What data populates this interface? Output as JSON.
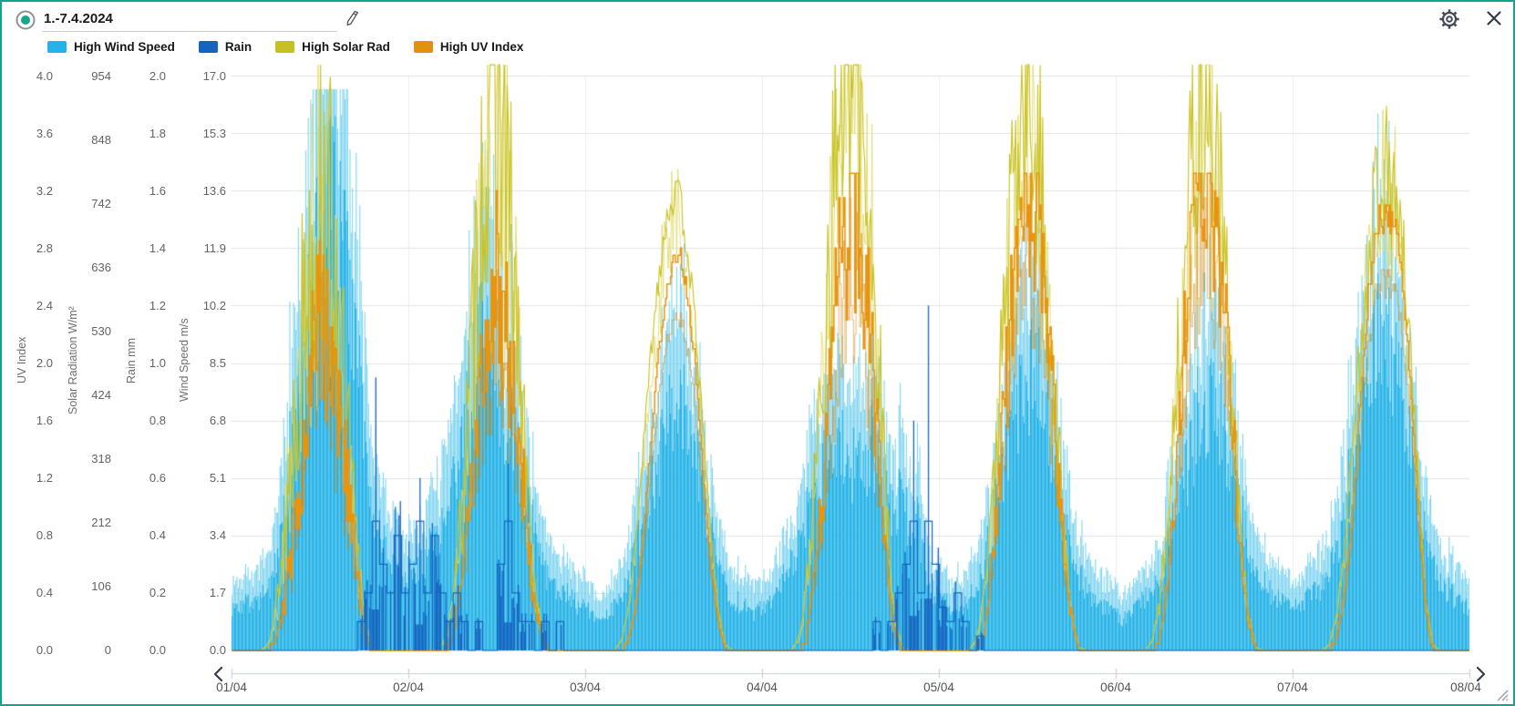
{
  "window": {
    "border_color": "#0fa78c",
    "background": "#ffffff"
  },
  "header": {
    "radio_selected": true,
    "title_value": "1.-7.4.2024",
    "edit_icon": "pencil-icon",
    "settings_icon": "gear-icon",
    "close_icon": "x-icon"
  },
  "legend": [
    {
      "label": "High Wind Speed",
      "color": "#25b2e8"
    },
    {
      "label": "Rain",
      "color": "#1565c0"
    },
    {
      "label": "High Solar Rad",
      "color": "#c6c022"
    },
    {
      "label": "High UV Index",
      "color": "#e0920f"
    }
  ],
  "axes": {
    "left": [
      {
        "title": "UV Index",
        "ticks": [
          "4.0",
          "3.6",
          "3.2",
          "2.8",
          "2.4",
          "2.0",
          "1.6",
          "1.2",
          "0.8",
          "0.4",
          "0.0"
        ]
      },
      {
        "title": "Solar Radiation W/m²",
        "ticks": [
          "954",
          "848",
          "742",
          "636",
          "530",
          "424",
          "318",
          "212",
          "106",
          "0"
        ]
      },
      {
        "title": "Rain mm",
        "ticks": [
          "2.0",
          "1.8",
          "1.6",
          "1.4",
          "1.2",
          "1.0",
          "0.8",
          "0.6",
          "0.4",
          "0.2",
          "0.0"
        ]
      },
      {
        "title": "Wind Speed m/s",
        "ticks": [
          "17.0",
          "15.3",
          "13.6",
          "11.9",
          "10.2",
          "8.5",
          "6.8",
          "5.1",
          "3.4",
          "1.7",
          "0.0"
        ]
      }
    ],
    "x": {
      "labels": [
        "01/04",
        "02/04",
        "03/04",
        "04/04",
        "05/04",
        "06/04",
        "07/04",
        "08/04"
      ]
    }
  },
  "chart_data": {
    "type": "bar",
    "note": "multi-axis weather time series, 1.-7.4.2024; wind/rain drawn as bars, solar/UV as jagged-stepped lines; hourly envelope values per day estimated from gridlines",
    "x": {
      "days": [
        "01/04",
        "02/04",
        "03/04",
        "04/04",
        "05/04",
        "06/04",
        "07/04"
      ],
      "hours_per_day": 24
    },
    "y_axes": [
      {
        "id": "uv",
        "title": "UV Index",
        "min": 0,
        "max": 4
      },
      {
        "id": "solar",
        "title": "Solar Radiation W/m²",
        "min": 0,
        "max": 954
      },
      {
        "id": "rain",
        "title": "Rain mm",
        "min": 0,
        "max": 2
      },
      {
        "id": "wind",
        "title": "Wind Speed m/s",
        "min": 0,
        "max": 17
      }
    ],
    "series": [
      {
        "name": "High Wind Speed",
        "axis": "wind",
        "unit": "m/s",
        "style": "bars",
        "color": "#1fb0e6",
        "color_light": "#7fd4f1",
        "hourly": [
          [
            1.5,
            1.4,
            1.6,
            1.5,
            1.7,
            2.0,
            3.0,
            4.5,
            6.5,
            8.5,
            10.5,
            12.5,
            14.0,
            15.2,
            15.6,
            14.5,
            12.5,
            9.5,
            7.0,
            5.0,
            4.0,
            3.5,
            3.0,
            2.5
          ],
          [
            2.5,
            2.8,
            3.0,
            3.5,
            4.0,
            4.5,
            5.5,
            6.5,
            8.0,
            9.5,
            10.8,
            11.2,
            9.0,
            7.8,
            8.2,
            6.5,
            5.0,
            4.0,
            3.0,
            2.5,
            2.2,
            2.0,
            1.8,
            1.5
          ],
          [
            1.5,
            1.2,
            1.0,
            1.2,
            1.5,
            2.0,
            2.5,
            3.5,
            4.5,
            5.5,
            6.5,
            7.8,
            8.6,
            8.3,
            7.8,
            7.0,
            5.5,
            4.0,
            3.0,
            2.2,
            1.8,
            1.5,
            1.5,
            1.2
          ],
          [
            1.5,
            1.5,
            2.0,
            2.5,
            3.0,
            3.5,
            4.5,
            5.5,
            6.0,
            6.5,
            7.0,
            7.0,
            6.5,
            6.0,
            6.5,
            7.0,
            6.0,
            5.0,
            4.5,
            5.5,
            4.0,
            4.5,
            3.0,
            2.0
          ],
          [
            1.8,
            1.6,
            1.5,
            1.5,
            1.8,
            2.2,
            3.0,
            4.0,
            5.5,
            6.5,
            7.5,
            8.5,
            9.2,
            9.5,
            8.5,
            7.0,
            5.5,
            4.5,
            3.5,
            2.5,
            2.0,
            1.8,
            1.5,
            1.5
          ],
          [
            1.2,
            1.0,
            1.2,
            1.5,
            1.8,
            2.0,
            2.5,
            3.5,
            4.5,
            5.5,
            6.5,
            7.5,
            8.2,
            8.6,
            8.0,
            7.0,
            6.0,
            4.5,
            3.5,
            2.8,
            2.2,
            2.0,
            1.8,
            1.5
          ],
          [
            1.5,
            1.5,
            1.8,
            2.0,
            2.2,
            2.5,
            3.5,
            4.5,
            6.0,
            7.5,
            8.8,
            9.8,
            10.2,
            10.3,
            9.5,
            8.5,
            7.0,
            5.5,
            4.0,
            3.0,
            2.5,
            2.0,
            1.8,
            1.5
          ]
        ]
      },
      {
        "name": "Rain",
        "axis": "rain",
        "unit": "mm",
        "style": "bars+steps",
        "color": "#1565c0",
        "hourly": [
          [
            0,
            0,
            0,
            0,
            0,
            0,
            0,
            0,
            0,
            0,
            0,
            0,
            0,
            0,
            0,
            0,
            0,
            0.1,
            0.2,
            0.95,
            0.3,
            0.2,
            0.4,
            0.2
          ],
          [
            0.3,
            0.6,
            0.2,
            0.4,
            0.2,
            0.1,
            0.2,
            0.1,
            0,
            0.1,
            0,
            0,
            0.3,
            0.65,
            0.2,
            0.1,
            0.1,
            0,
            0.1,
            0,
            0.1,
            0,
            0,
            0
          ],
          [
            0,
            0,
            0,
            0,
            0,
            0,
            0,
            0,
            0,
            0,
            0,
            0,
            0,
            0,
            0,
            0,
            0,
            0,
            0,
            0,
            0,
            0,
            0,
            0
          ],
          [
            0,
            0,
            0,
            0,
            0,
            0,
            0,
            0,
            0,
            0,
            0,
            0,
            0,
            0,
            0,
            0.1,
            0,
            0.1,
            0.2,
            0.3,
            0.8,
            0.2,
            1.2,
            0.3
          ],
          [
            0.15,
            0.1,
            0.2,
            0.1,
            0,
            0.05,
            0,
            0,
            0,
            0,
            0,
            0,
            0,
            0,
            0,
            0,
            0,
            0,
            0,
            0,
            0,
            0,
            0,
            0
          ],
          [
            0,
            0,
            0,
            0,
            0,
            0,
            0,
            0,
            0,
            0,
            0,
            0,
            0,
            0,
            0,
            0,
            0,
            0,
            0,
            0,
            0,
            0,
            0,
            0
          ],
          [
            0,
            0,
            0,
            0,
            0,
            0,
            0,
            0,
            0,
            0,
            0,
            0,
            0,
            0,
            0,
            0,
            0,
            0,
            0,
            0,
            0,
            0,
            0,
            0
          ]
        ]
      },
      {
        "name": "High Solar Rad",
        "axis": "solar",
        "unit": "W/m²",
        "style": "jagged-line",
        "color": "#c9c324",
        "color_light": "#dfd96a",
        "variability": [
          0.9,
          0.8,
          0.1,
          0.7,
          0.6,
          0.55,
          0.3
        ],
        "hourly": [
          [
            0,
            0,
            0,
            0,
            0,
            10,
            60,
            150,
            280,
            420,
            540,
            630,
            690,
            650,
            560,
            430,
            290,
            150,
            50,
            5,
            0,
            0,
            0,
            0
          ],
          [
            0,
            0,
            0,
            0,
            0,
            15,
            70,
            180,
            340,
            520,
            700,
            820,
            850,
            760,
            600,
            430,
            260,
            110,
            30,
            0,
            0,
            0,
            0,
            0
          ],
          [
            0,
            0,
            0,
            0,
            0,
            20,
            80,
            200,
            350,
            500,
            620,
            710,
            750,
            730,
            650,
            520,
            360,
            200,
            70,
            10,
            0,
            0,
            0,
            0
          ],
          [
            0,
            0,
            0,
            0,
            0,
            20,
            90,
            220,
            400,
            580,
            750,
            890,
            950,
            900,
            780,
            600,
            400,
            200,
            60,
            5,
            0,
            0,
            0,
            0
          ],
          [
            0,
            0,
            0,
            0,
            0,
            15,
            75,
            190,
            350,
            520,
            680,
            800,
            840,
            800,
            690,
            530,
            350,
            170,
            50,
            5,
            0,
            0,
            0,
            0
          ],
          [
            0,
            0,
            0,
            0,
            0,
            15,
            80,
            200,
            370,
            550,
            710,
            830,
            880,
            830,
            710,
            550,
            360,
            180,
            50,
            5,
            0,
            0,
            0,
            0
          ],
          [
            0,
            0,
            0,
            0,
            0,
            10,
            60,
            160,
            300,
            460,
            600,
            710,
            770,
            760,
            720,
            620,
            460,
            280,
            90,
            10,
            0,
            0,
            0,
            0
          ]
        ]
      },
      {
        "name": "High UV Index",
        "axis": "uv",
        "unit": "",
        "style": "stepped-line",
        "color": "#e8940f",
        "color_shadow": "#d08208",
        "variability": [
          0.7,
          0.6,
          0.05,
          0.55,
          0.45,
          0.45,
          0.08
        ],
        "hourly": [
          [
            0,
            0,
            0,
            0,
            0,
            0,
            0.1,
            0.3,
            0.6,
            1.0,
            1.5,
            1.9,
            2.2,
            2.1,
            1.8,
            1.4,
            0.9,
            0.5,
            0.1,
            0,
            0,
            0,
            0,
            0
          ],
          [
            0,
            0,
            0,
            0,
            0,
            0,
            0.1,
            0.4,
            0.8,
            1.3,
            1.8,
            2.2,
            2.4,
            2.2,
            1.8,
            1.3,
            0.8,
            0.3,
            0.1,
            0,
            0,
            0,
            0,
            0
          ],
          [
            0,
            0,
            0,
            0,
            0,
            0,
            0.1,
            0.4,
            0.9,
            1.5,
            2.1,
            2.5,
            2.7,
            2.7,
            2.4,
            1.9,
            1.2,
            0.6,
            0.2,
            0,
            0,
            0,
            0,
            0
          ],
          [
            0,
            0,
            0,
            0,
            0,
            0,
            0.1,
            0.5,
            1.0,
            1.6,
            2.2,
            2.7,
            2.9,
            2.8,
            2.4,
            1.8,
            1.2,
            0.5,
            0.1,
            0,
            0,
            0,
            0,
            0
          ],
          [
            0,
            0,
            0,
            0,
            0,
            0,
            0.1,
            0.5,
            1.0,
            1.7,
            2.3,
            2.8,
            3.0,
            2.9,
            2.5,
            1.9,
            1.2,
            0.6,
            0.2,
            0,
            0,
            0,
            0,
            0
          ],
          [
            0,
            0,
            0,
            0,
            0,
            0,
            0.1,
            0.5,
            1.1,
            1.8,
            2.5,
            3.0,
            3.3,
            3.1,
            2.7,
            2.0,
            1.3,
            0.6,
            0.2,
            0,
            0,
            0,
            0,
            0
          ],
          [
            0,
            0,
            0,
            0,
            0,
            0,
            0.1,
            0.4,
            0.9,
            1.6,
            2.3,
            2.8,
            3.0,
            3.0,
            2.9,
            2.5,
            1.8,
            1.0,
            0.3,
            0,
            0,
            0,
            0,
            0
          ]
        ]
      }
    ],
    "render": {
      "seed": 7,
      "grid": "on",
      "legend_position": "top-left"
    }
  },
  "scrollbar": {
    "left_arrow": "chevron-left-icon",
    "right_arrow": "chevron-right-icon",
    "resize": "resize-grip-icon"
  }
}
